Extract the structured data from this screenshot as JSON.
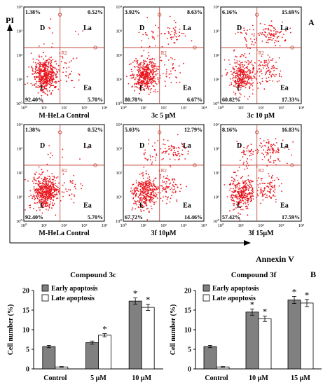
{
  "panel_a": {
    "label": "A",
    "y_axis_label": "PI",
    "x_axis_label": "Annexin V",
    "gate_label": "R2",
    "quadrant_labels": {
      "tl": "D",
      "tr": "La",
      "bl": "L",
      "br": "Ea"
    },
    "tick_labels": [
      "10⁰",
      "10¹",
      "10²",
      "10³",
      "10⁴"
    ],
    "plots": [
      {
        "caption": "M-HeLa Control",
        "q_tl": "1.38%",
        "q_tr": "0.52%",
        "q_bl": "92.40%",
        "q_br": "5.70%"
      },
      {
        "caption": "3c   5 µM",
        "q_tl": "3.92%",
        "q_tr": "8.63%",
        "q_bl": "80.78%",
        "q_br": "6.67%"
      },
      {
        "caption": "3c   10 µM",
        "q_tl": "6.16%",
        "q_tr": "15.69%",
        "q_bl": "60.82%",
        "q_br": "17.33%"
      },
      {
        "caption": "M-HeLa Control",
        "q_tl": "1.38%",
        "q_tr": "0.52%",
        "q_bl": "92.40%",
        "q_br": "5.70%"
      },
      {
        "caption": "3f    10µM",
        "q_tl": "5.03%",
        "q_tr": "12.79%",
        "q_bl": "67.72%",
        "q_br": "14.46%"
      },
      {
        "caption": "3f    15µM",
        "q_tl": "8.16%",
        "q_tr": "16.83%",
        "q_bl": "57.42%",
        "q_br": "17.59%"
      }
    ],
    "dot_color": "#e8141c",
    "gate_color": "#c0392b"
  },
  "chart_data": [
    {
      "type": "bar",
      "title": "Compound 3c",
      "ylabel": "Cell number (%)",
      "xlabel": "",
      "ylim": [
        0,
        20
      ],
      "yticks": [
        "0",
        "5",
        "10",
        "15",
        "20"
      ],
      "categories": [
        "Control",
        "5 µM",
        "10 µM"
      ],
      "legend_position": "top-left",
      "series": [
        {
          "name": "Early apoptosis",
          "color": "#808080",
          "values": [
            5.7,
            6.7,
            17.3
          ],
          "errors": [
            0.3,
            0.4,
            0.8
          ],
          "significant": [
            false,
            false,
            true
          ]
        },
        {
          "name": "Late apoptosis",
          "color": "#ffffff",
          "values": [
            0.5,
            8.6,
            15.7
          ],
          "errors": [
            0.1,
            0.4,
            0.8
          ],
          "significant": [
            false,
            true,
            true
          ]
        }
      ],
      "significance_mark": "*"
    },
    {
      "type": "bar",
      "title": "Compound 3f",
      "panel_label": "B",
      "ylabel": "Cell number (%)",
      "xlabel": "",
      "ylim": [
        0,
        20
      ],
      "yticks": [
        "0",
        "5",
        "10",
        "15",
        "20"
      ],
      "categories": [
        "Control",
        "10 µM",
        "15 µM"
      ],
      "legend_position": "top-left",
      "series": [
        {
          "name": "Early apoptosis",
          "color": "#808080",
          "values": [
            5.7,
            14.5,
            17.6
          ],
          "errors": [
            0.3,
            0.8,
            0.9
          ],
          "significant": [
            false,
            true,
            true
          ]
        },
        {
          "name": "Late apoptosis",
          "color": "#ffffff",
          "values": [
            0.5,
            12.8,
            16.8
          ],
          "errors": [
            0.1,
            0.7,
            0.9
          ],
          "significant": [
            false,
            true,
            true
          ]
        }
      ],
      "significance_mark": "*"
    }
  ]
}
